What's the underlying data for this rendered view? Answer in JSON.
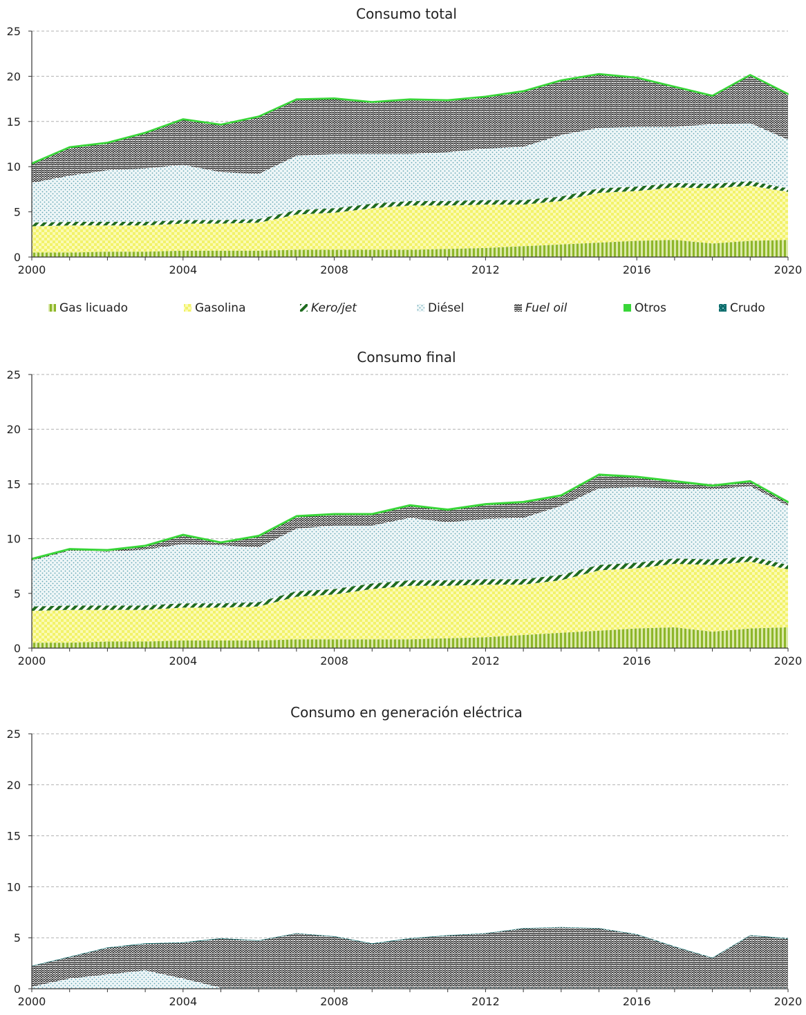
{
  "chart_data": [
    {
      "type": "area",
      "stacked": true,
      "title": "Consumo total",
      "xlabel": "",
      "ylabel": "",
      "ylim": [
        0,
        25
      ],
      "xlim": [
        2000,
        2020
      ],
      "x_ticks": [
        2000,
        2004,
        2008,
        2012,
        2016,
        2020
      ],
      "y_ticks": [
        0,
        5,
        10,
        15,
        20,
        25
      ],
      "grid": true,
      "x": [
        2000,
        2001,
        2002,
        2003,
        2004,
        2005,
        2006,
        2007,
        2008,
        2009,
        2010,
        2011,
        2012,
        2013,
        2014,
        2015,
        2016,
        2017,
        2018,
        2019,
        2020
      ],
      "series": [
        {
          "name": "Gas licuado",
          "values": [
            0.5,
            0.5,
            0.6,
            0.6,
            0.7,
            0.7,
            0.7,
            0.8,
            0.8,
            0.8,
            0.8,
            0.9,
            1.0,
            1.2,
            1.4,
            1.6,
            1.8,
            1.9,
            1.5,
            1.8,
            1.9
          ]
        },
        {
          "name": "Gasolina",
          "values": [
            2.9,
            3.0,
            2.9,
            2.9,
            3.0,
            3.0,
            3.1,
            3.9,
            4.1,
            4.6,
            4.9,
            4.8,
            4.8,
            4.6,
            4.8,
            5.5,
            5.5,
            5.8,
            6.1,
            6.1,
            5.3
          ]
        },
        {
          "name": "Kero/jet",
          "values": [
            0.4,
            0.4,
            0.4,
            0.4,
            0.4,
            0.4,
            0.4,
            0.5,
            0.5,
            0.5,
            0.5,
            0.5,
            0.5,
            0.5,
            0.5,
            0.5,
            0.5,
            0.5,
            0.5,
            0.5,
            0.4
          ]
        },
        {
          "name": "Diésel",
          "values": [
            4.4,
            5.1,
            5.7,
            5.9,
            6.1,
            5.3,
            5.0,
            6.0,
            6.0,
            5.5,
            5.2,
            5.4,
            5.7,
            5.9,
            6.8,
            6.7,
            6.6,
            6.2,
            6.6,
            6.4,
            5.4
          ]
        },
        {
          "name": "Fuel oil",
          "values": [
            2.1,
            3.1,
            3.0,
            3.9,
            5.0,
            5.2,
            6.3,
            6.2,
            6.1,
            5.7,
            6.0,
            5.7,
            5.7,
            6.1,
            6.0,
            5.9,
            5.4,
            4.4,
            3.1,
            5.3,
            5.0
          ]
        },
        {
          "name": "Otros",
          "values": [
            0.1,
            0.1,
            0.1,
            0.1,
            0.1,
            0.1,
            0.1,
            0.1,
            0.1,
            0.1,
            0.1,
            0.1,
            0.1,
            0.1,
            0.1,
            0.1,
            0.1,
            0.1,
            0.1,
            0.1,
            0.1
          ]
        },
        {
          "name": "Crudo",
          "values": [
            0,
            0,
            0,
            0,
            0,
            0,
            0,
            0,
            0,
            0,
            0,
            0,
            0,
            0,
            0,
            0,
            0,
            0,
            0,
            0,
            0
          ]
        }
      ]
    },
    {
      "type": "area",
      "stacked": true,
      "title": "Consumo final",
      "xlabel": "",
      "ylabel": "",
      "ylim": [
        0,
        25
      ],
      "xlim": [
        2000,
        2020
      ],
      "x_ticks": [
        2000,
        2004,
        2008,
        2012,
        2016,
        2020
      ],
      "y_ticks": [
        0,
        5,
        10,
        15,
        20,
        25
      ],
      "grid": true,
      "x": [
        2000,
        2001,
        2002,
        2003,
        2004,
        2005,
        2006,
        2007,
        2008,
        2009,
        2010,
        2011,
        2012,
        2013,
        2014,
        2015,
        2016,
        2017,
        2018,
        2019,
        2020
      ],
      "series": [
        {
          "name": "Gas licuado",
          "values": [
            0.5,
            0.5,
            0.6,
            0.6,
            0.7,
            0.7,
            0.7,
            0.8,
            0.8,
            0.8,
            0.8,
            0.9,
            1.0,
            1.2,
            1.4,
            1.6,
            1.8,
            1.9,
            1.5,
            1.8,
            1.9
          ]
        },
        {
          "name": "Gasolina",
          "values": [
            2.9,
            3.0,
            2.9,
            2.9,
            3.0,
            3.0,
            3.1,
            3.9,
            4.1,
            4.6,
            4.9,
            4.8,
            4.8,
            4.6,
            4.8,
            5.5,
            5.5,
            5.8,
            6.1,
            6.1,
            5.3
          ]
        },
        {
          "name": "Kero/jet",
          "values": [
            0.4,
            0.4,
            0.4,
            0.4,
            0.4,
            0.4,
            0.4,
            0.5,
            0.5,
            0.5,
            0.5,
            0.5,
            0.5,
            0.5,
            0.5,
            0.5,
            0.5,
            0.5,
            0.5,
            0.5,
            0.4
          ]
        },
        {
          "name": "Diésel",
          "values": [
            4.2,
            5.0,
            4.9,
            5.1,
            5.4,
            5.3,
            5.0,
            5.7,
            5.8,
            5.3,
            5.7,
            5.3,
            5.5,
            5.6,
            6.3,
            7.0,
            6.9,
            6.4,
            6.4,
            6.4,
            5.4
          ]
        },
        {
          "name": "Fuel oil",
          "values": [
            0.1,
            0.1,
            0.1,
            0.3,
            0.8,
            0.2,
            1.0,
            1.1,
            1.0,
            1.0,
            1.1,
            1.1,
            1.3,
            1.4,
            0.9,
            1.2,
            0.9,
            0.6,
            0.3,
            0.4,
            0.3
          ]
        },
        {
          "name": "Otros",
          "values": [
            0.1,
            0.1,
            0.1,
            0.1,
            0.1,
            0.1,
            0.1,
            0.1,
            0.1,
            0.1,
            0.1,
            0.1,
            0.1,
            0.1,
            0.1,
            0.1,
            0.1,
            0.1,
            0.1,
            0.1,
            0.1
          ]
        },
        {
          "name": "Crudo",
          "values": [
            0,
            0,
            0,
            0,
            0,
            0,
            0,
            0,
            0,
            0,
            0,
            0,
            0,
            0,
            0,
            0,
            0,
            0,
            0,
            0,
            0
          ]
        }
      ]
    },
    {
      "type": "area",
      "stacked": true,
      "title": "Consumo en generación eléctrica",
      "xlabel": "",
      "ylabel": "",
      "ylim": [
        0,
        25
      ],
      "xlim": [
        2000,
        2020
      ],
      "x_ticks": [
        2000,
        2004,
        2008,
        2012,
        2016,
        2020
      ],
      "y_ticks": [
        0,
        5,
        10,
        15,
        20,
        25
      ],
      "grid": true,
      "x": [
        2000,
        2001,
        2002,
        2003,
        2004,
        2005,
        2006,
        2007,
        2008,
        2009,
        2010,
        2011,
        2012,
        2013,
        2014,
        2015,
        2016,
        2017,
        2018,
        2019,
        2020
      ],
      "series": [
        {
          "name": "Gas licuado",
          "values": [
            0,
            0,
            0,
            0,
            0,
            0,
            0,
            0,
            0,
            0,
            0,
            0,
            0,
            0,
            0,
            0,
            0,
            0,
            0,
            0,
            0
          ]
        },
        {
          "name": "Gasolina",
          "values": [
            0,
            0,
            0,
            0,
            0,
            0,
            0,
            0,
            0,
            0,
            0,
            0,
            0,
            0,
            0,
            0,
            0,
            0,
            0,
            0,
            0
          ]
        },
        {
          "name": "Kero/jet",
          "values": [
            0,
            0,
            0,
            0,
            0,
            0,
            0,
            0,
            0,
            0,
            0,
            0,
            0,
            0,
            0,
            0,
            0,
            0,
            0,
            0,
            0
          ]
        },
        {
          "name": "Diésel",
          "values": [
            0.2,
            1.0,
            1.4,
            1.8,
            1.0,
            0.1,
            0.1,
            0.1,
            0.1,
            0.1,
            0.1,
            0.1,
            0.1,
            0.1,
            0.1,
            0.1,
            0.1,
            0.1,
            0.1,
            0.1,
            0.1
          ]
        },
        {
          "name": "Fuel oil",
          "values": [
            2.0,
            2.1,
            2.6,
            2.6,
            3.5,
            4.8,
            4.6,
            5.3,
            5.0,
            4.3,
            4.8,
            5.1,
            5.3,
            5.8,
            5.9,
            5.8,
            5.2,
            4.0,
            2.9,
            5.1,
            4.8
          ]
        },
        {
          "name": "Otros",
          "values": [
            0,
            0,
            0,
            0,
            0,
            0,
            0,
            0,
            0,
            0,
            0,
            0,
            0,
            0,
            0,
            0,
            0,
            0,
            0,
            0,
            0
          ]
        },
        {
          "name": "Crudo",
          "values": [
            0.05,
            0.05,
            0.05,
            0.05,
            0.05,
            0.05,
            0.05,
            0.05,
            0.05,
            0.05,
            0.05,
            0.05,
            0.05,
            0.05,
            0.05,
            0.05,
            0.05,
            0.05,
            0.05,
            0.05,
            0.05
          ]
        }
      ]
    }
  ],
  "legend": {
    "placement": "below first chart",
    "items": [
      {
        "label": "Gas licuado",
        "italic": false
      },
      {
        "label": "Gasolina",
        "italic": false
      },
      {
        "label": "Kero/jet",
        "italic": true
      },
      {
        "label": "Diésel",
        "italic": false
      },
      {
        "label": "Fuel oil",
        "italic": true
      },
      {
        "label": "Otros",
        "italic": false
      },
      {
        "label": "Crudo",
        "italic": false
      }
    ]
  },
  "colors": {
    "gas_licuado": "#8db62a",
    "gasolina": "#f7f78a",
    "kero_jet": "#1f6b1f",
    "diesel": "#7fb8c4",
    "fuel_oil": "#1a1a1a",
    "otros": "#39d639",
    "crudo": "#0f6d6d",
    "grid": "#b0b0b0",
    "axis": "#333333"
  }
}
